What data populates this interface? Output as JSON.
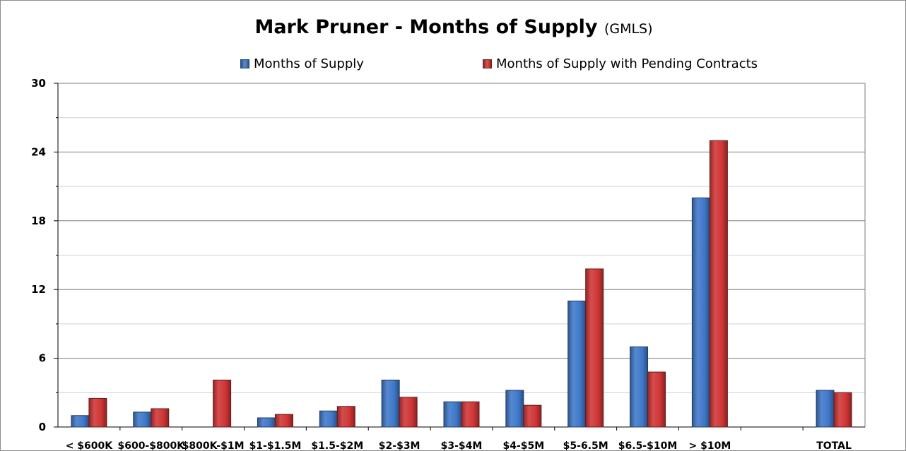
{
  "chart_data": {
    "type": "bar",
    "title": "Mark Pruner - Months of Supply",
    "title_suffix": "(GMLS)",
    "xlabel": "",
    "ylabel": "",
    "ylim": [
      0,
      30
    ],
    "yticks": [
      0,
      6,
      12,
      18,
      24,
      30
    ],
    "grid": true,
    "legend_position": "top",
    "categories": [
      "< $600K",
      "$600-$800K",
      "$800K-$1M",
      "$1-$1.5M",
      "$1.5-$2M",
      "$2-$3M",
      "$3-$4M",
      "$4-$5M",
      "$5-6.5M",
      "$6.5-$10M",
      "> $10M",
      "",
      "TOTAL"
    ],
    "series": [
      {
        "name": "Months of Supply",
        "color": "#3f78c9",
        "values": [
          1.0,
          1.3,
          0,
          0.8,
          1.4,
          4.1,
          2.2,
          3.2,
          11.0,
          7.0,
          20.0,
          null,
          3.2
        ]
      },
      {
        "name": "Months of Supply with Pending Contracts",
        "color": "#cf3535",
        "values": [
          2.5,
          1.6,
          4.1,
          1.1,
          1.8,
          2.6,
          2.2,
          1.9,
          13.8,
          4.8,
          25.0,
          null,
          3.0
        ]
      }
    ]
  }
}
